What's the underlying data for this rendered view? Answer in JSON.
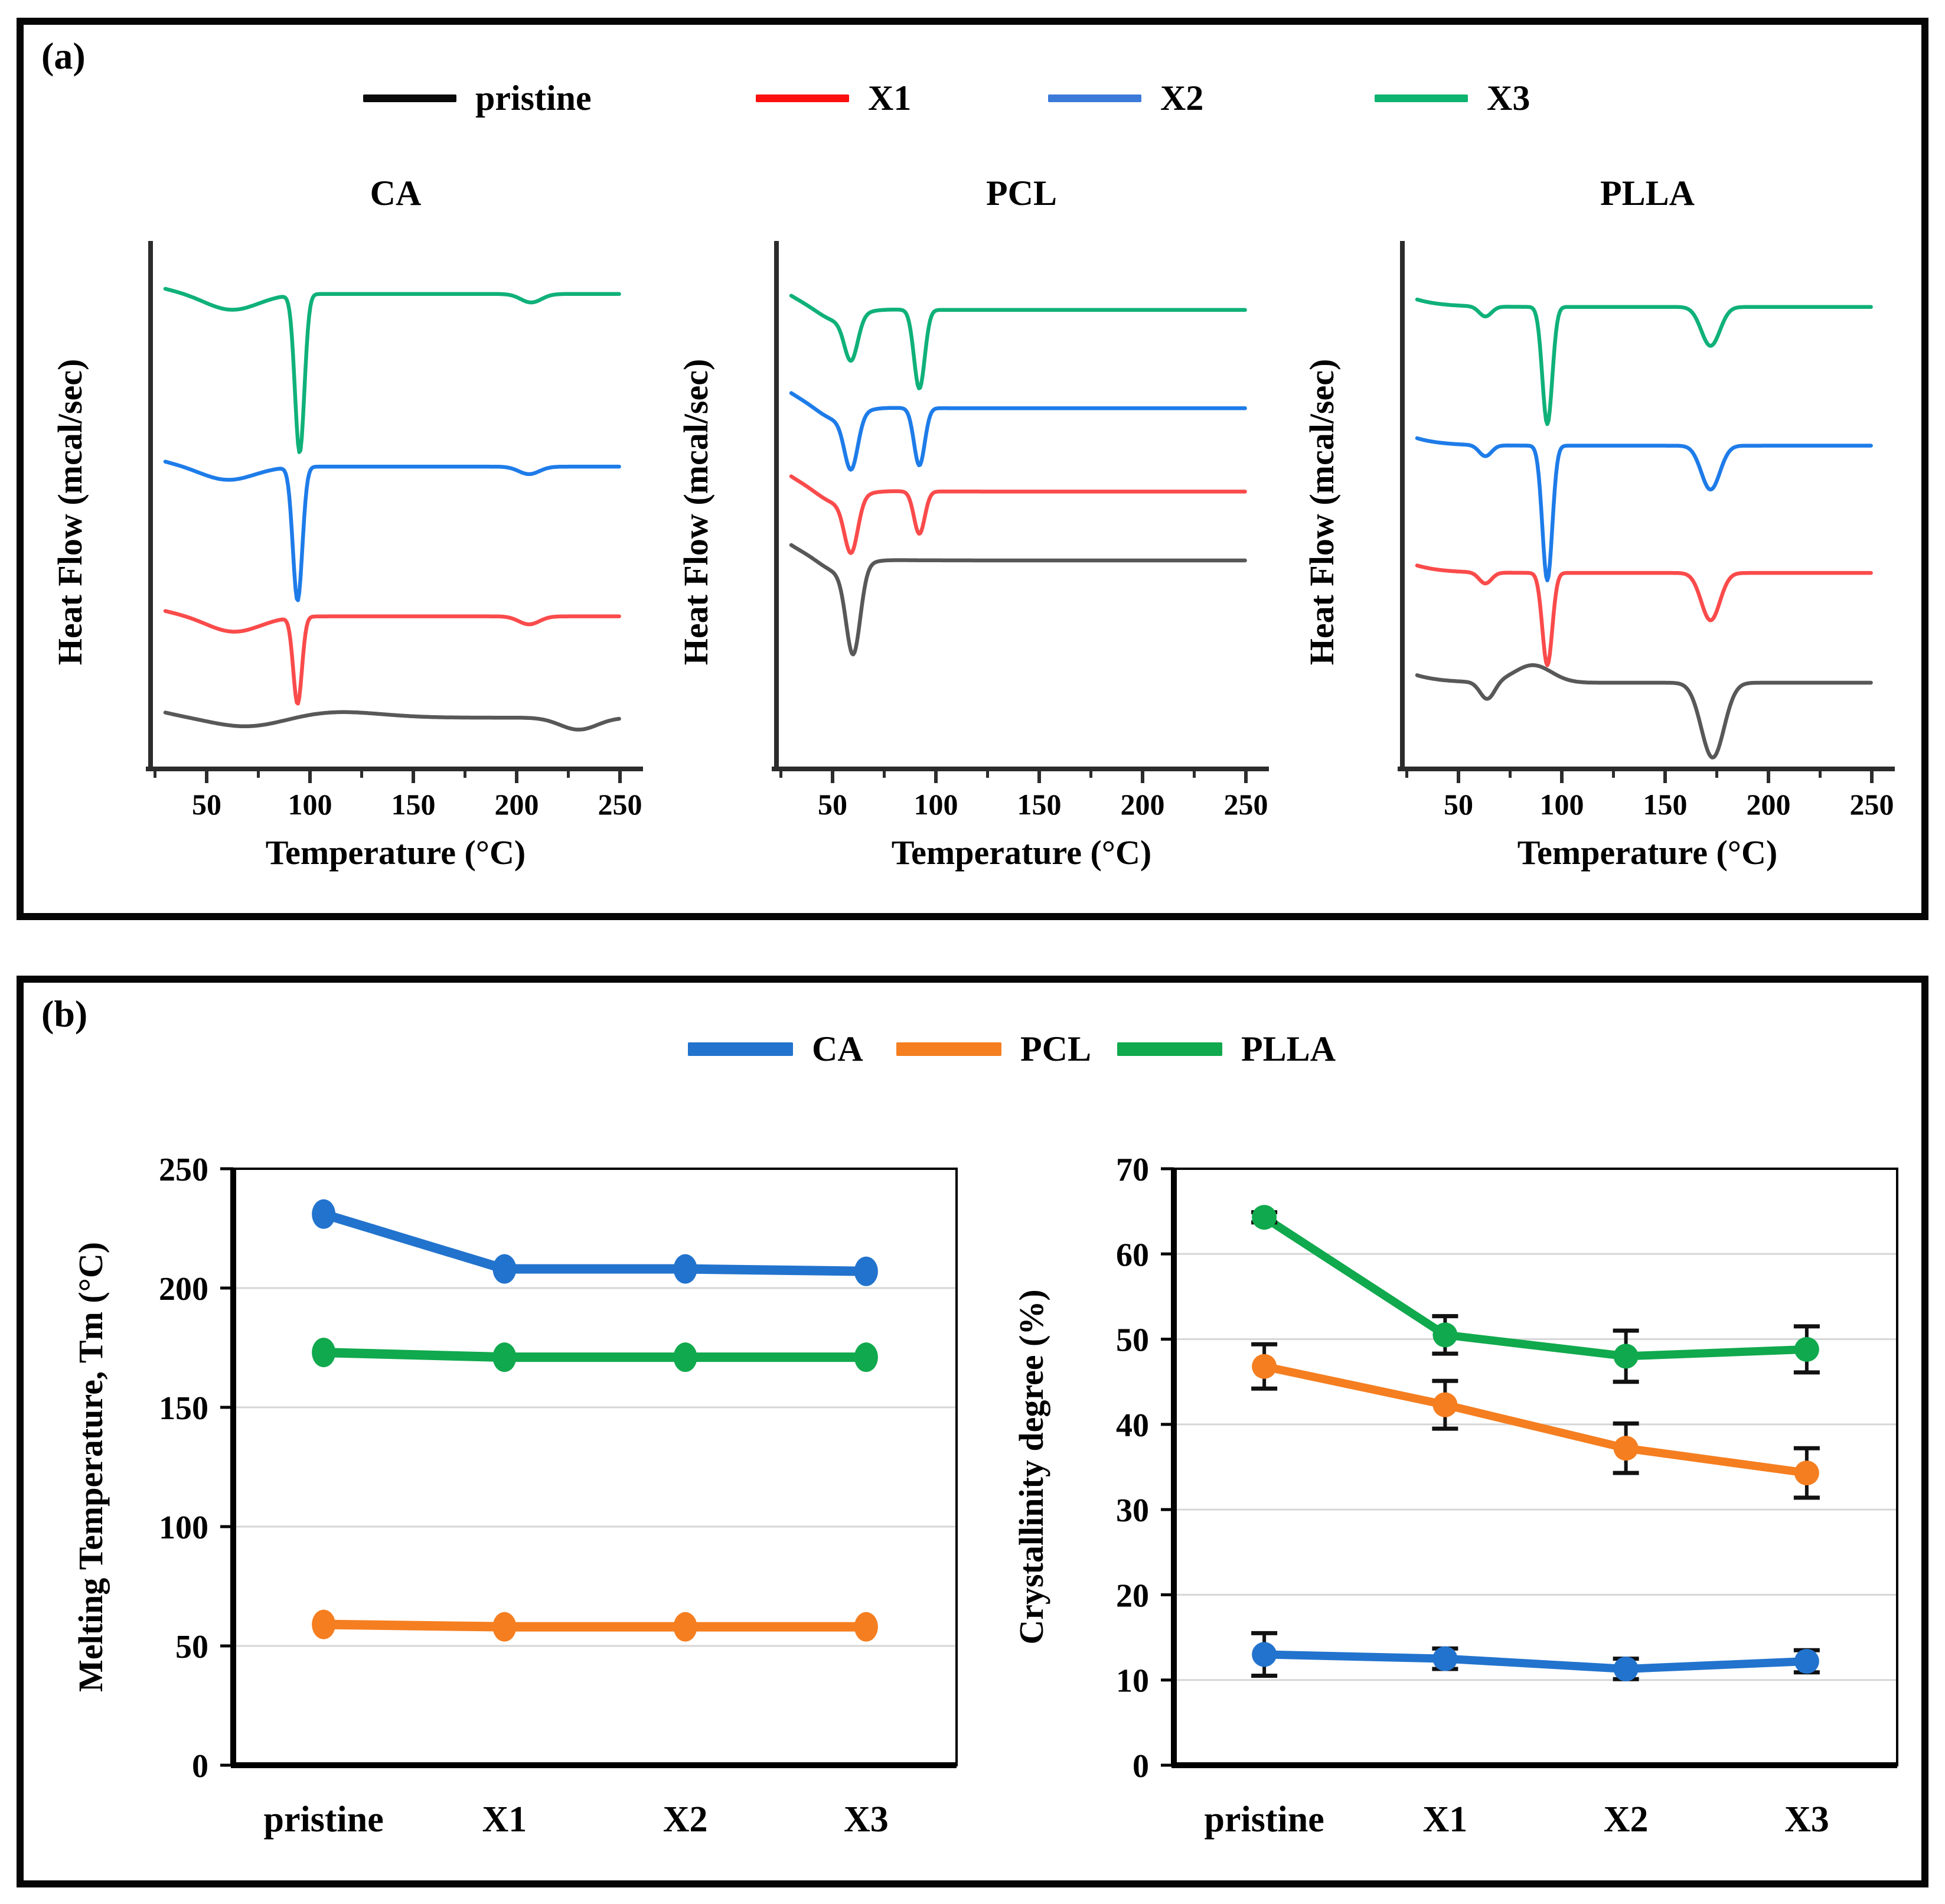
{
  "panel_a": {
    "label": "(a)",
    "legend": [
      {
        "label": "pristine",
        "color": "#0a0a0a"
      },
      {
        "label": "X1",
        "color": "#fb0f0f"
      },
      {
        "label": "X2",
        "color": "#3b7ad9"
      },
      {
        "label": "X3",
        "color": "#0db36f"
      }
    ]
  },
  "panel_b": {
    "label": "(b)",
    "legend": [
      {
        "label": "CA",
        "color": "#2273cd"
      },
      {
        "label": "PCL",
        "color": "#f57e20"
      },
      {
        "label": "PLLA",
        "color": "#10a94d"
      }
    ]
  },
  "chart_data": [
    {
      "id": "dsc_ca",
      "kind": "dsc",
      "type": "line",
      "title": "CA",
      "xlabel": "Temperature (°C)",
      "ylabel": "Heat Flow (mcal/sec)",
      "x_range": [
        30,
        250
      ],
      "x_ticks": [
        50,
        100,
        150,
        200,
        250
      ],
      "x_minor_ticks": [
        25,
        75,
        125,
        175,
        225
      ],
      "y_axis_note": "arbitrary units, curves vertically offset",
      "series": [
        {
          "name": "pristine",
          "color": "#585858",
          "baseline": 0.915,
          "edge": {
            "amp": 0.012,
            "decay": 15
          },
          "peaks": [
            {
              "center": 70,
              "sigma": 18,
              "depth": 0.02
            },
            {
              "center": 112,
              "sigma": 22,
              "depth": -0.012
            },
            {
              "center": 230,
              "sigma": 9,
              "depth": 0.024
            }
          ]
        },
        {
          "name": "X1",
          "color": "#fa4b4b",
          "baseline": 0.712,
          "edge": {
            "amp": 0.012,
            "decay": 15
          },
          "peaks": [
            {
              "center": 63,
              "sigma": 13,
              "depth": 0.032
            },
            {
              "center": 94,
              "sigma": 2.1,
              "depth": 0.174
            },
            {
              "center": 206,
              "sigma": 5,
              "depth": 0.016
            }
          ]
        },
        {
          "name": "X2",
          "color": "#1e7ce9",
          "baseline": 0.412,
          "edge": {
            "amp": 0.012,
            "decay": 15
          },
          "peaks": [
            {
              "center": 60,
              "sigma": 13,
              "depth": 0.028
            },
            {
              "center": 94,
              "sigma": 2.3,
              "depth": 0.268
            },
            {
              "center": 206,
              "sigma": 5,
              "depth": 0.015
            }
          ]
        },
        {
          "name": "X3",
          "color": "#0fb179",
          "baseline": 0.066,
          "edge": {
            "amp": 0.012,
            "decay": 15
          },
          "peaks": [
            {
              "center": 62,
              "sigma": 13,
              "depth": 0.033
            },
            {
              "center": 95,
              "sigma": 2.3,
              "depth": 0.317
            },
            {
              "center": 207,
              "sigma": 5,
              "depth": 0.017
            }
          ]
        }
      ]
    },
    {
      "id": "dsc_pcl",
      "kind": "dsc",
      "type": "line",
      "title": "PCL",
      "xlabel": "Temperature (°C)",
      "ylabel": "Heat Flow (mcal/sec)",
      "x_range": [
        30,
        250
      ],
      "x_ticks": [
        50,
        100,
        150,
        200,
        250
      ],
      "x_minor_ticks": [
        25,
        75,
        125,
        175,
        225
      ],
      "y_axis_note": "arbitrary units, curves vertically offset",
      "series": [
        {
          "name": "pristine",
          "color": "#585858",
          "baseline": 0.6,
          "edge": {
            "amp": 0.032,
            "decay": 14
          },
          "peaks": [
            {
              "center": 53,
              "sigma": 9,
              "depth": 0.03
            },
            {
              "center": 60,
              "sigma": 3.4,
              "depth": 0.17
            }
          ]
        },
        {
          "name": "X1",
          "color": "#fa4b4b",
          "baseline": 0.462,
          "edge": {
            "amp": 0.032,
            "decay": 14
          },
          "peaks": [
            {
              "center": 52,
              "sigma": 9,
              "depth": 0.03
            },
            {
              "center": 59,
              "sigma": 3.2,
              "depth": 0.105
            },
            {
              "center": 92,
              "sigma": 2.6,
              "depth": 0.085
            }
          ]
        },
        {
          "name": "X2",
          "color": "#1e7ce9",
          "baseline": 0.295,
          "edge": {
            "amp": 0.032,
            "decay": 14
          },
          "peaks": [
            {
              "center": 52,
              "sigma": 9,
              "depth": 0.03
            },
            {
              "center": 59,
              "sigma": 3.2,
              "depth": 0.105
            },
            {
              "center": 92,
              "sigma": 2.6,
              "depth": 0.115
            }
          ]
        },
        {
          "name": "X3",
          "color": "#0fb179",
          "baseline": 0.098,
          "edge": {
            "amp": 0.03,
            "decay": 14
          },
          "peaks": [
            {
              "center": 52,
              "sigma": 9,
              "depth": 0.028
            },
            {
              "center": 59,
              "sigma": 3.2,
              "depth": 0.085
            },
            {
              "center": 92,
              "sigma": 2.6,
              "depth": 0.158
            }
          ]
        }
      ]
    },
    {
      "id": "dsc_plla",
      "kind": "dsc",
      "type": "line",
      "title": "PLLA",
      "xlabel": "Temperature (°C)",
      "ylabel": "Heat Flow (mcal/sec)",
      "x_range": [
        30,
        250
      ],
      "x_ticks": [
        50,
        100,
        150,
        200,
        250
      ],
      "x_minor_ticks": [
        25,
        75,
        125,
        175,
        225
      ],
      "y_axis_note": "arbitrary units, curves vertically offset",
      "series": [
        {
          "name": "pristine",
          "color": "#585858",
          "baseline": 0.845,
          "edge": {
            "amp": 0.015,
            "decay": 12
          },
          "peaks": [
            {
              "center": 64,
              "sigma": 3.5,
              "depth": 0.035
            },
            {
              "center": 86,
              "sigma": 9,
              "depth": -0.035
            },
            {
              "center": 173,
              "sigma": 5.5,
              "depth": 0.15
            }
          ]
        },
        {
          "name": "X1",
          "color": "#fa4b4b",
          "baseline": 0.625,
          "edge": {
            "amp": 0.015,
            "decay": 12
          },
          "peaks": [
            {
              "center": 63,
              "sigma": 3,
              "depth": 0.022
            },
            {
              "center": 93,
              "sigma": 2.4,
              "depth": 0.185
            },
            {
              "center": 172,
              "sigma": 4.5,
              "depth": 0.095
            }
          ]
        },
        {
          "name": "X2",
          "color": "#1e7ce9",
          "baseline": 0.37,
          "edge": {
            "amp": 0.015,
            "decay": 12
          },
          "peaks": [
            {
              "center": 63,
              "sigma": 3,
              "depth": 0.022
            },
            {
              "center": 93,
              "sigma": 2.4,
              "depth": 0.27
            },
            {
              "center": 172,
              "sigma": 4.5,
              "depth": 0.088
            }
          ]
        },
        {
          "name": "X3",
          "color": "#0fb179",
          "baseline": 0.092,
          "edge": {
            "amp": 0.015,
            "decay": 12
          },
          "peaks": [
            {
              "center": 63,
              "sigma": 3,
              "depth": 0.02
            },
            {
              "center": 93,
              "sigma": 2.4,
              "depth": 0.235
            },
            {
              "center": 172,
              "sigma": 4.5,
              "depth": 0.078
            }
          ]
        }
      ]
    },
    {
      "id": "tm_chart",
      "kind": "category",
      "type": "line",
      "title": "",
      "ylabel": "Melting Temperature, Tm (°C)",
      "categories": [
        "pristine",
        "X1",
        "X2",
        "X3"
      ],
      "ylim": [
        0,
        250
      ],
      "y_ticks": [
        0,
        50,
        100,
        150,
        200,
        250
      ],
      "grid": true,
      "marker": "ellipse",
      "series": [
        {
          "name": "CA",
          "color": "#2273cd",
          "values": [
            231,
            208,
            208,
            207
          ]
        },
        {
          "name": "PCL",
          "color": "#f57e20",
          "values": [
            59,
            58,
            58,
            58
          ]
        },
        {
          "name": "PLLA",
          "color": "#10a94d",
          "values": [
            173,
            171,
            171,
            171
          ]
        }
      ]
    },
    {
      "id": "xc_chart",
      "kind": "category",
      "type": "line",
      "title": "",
      "ylabel": "Crystallinity  degree (%)",
      "categories": [
        "pristine",
        "X1",
        "X2",
        "X3"
      ],
      "ylim": [
        0,
        70
      ],
      "y_ticks": [
        0,
        10,
        20,
        30,
        40,
        50,
        60,
        70
      ],
      "grid": true,
      "marker": "circle",
      "series": [
        {
          "name": "CA",
          "color": "#2273cd",
          "values": [
            13,
            12.5,
            11.3,
            12.2
          ],
          "errors": [
            2.5,
            1.2,
            1.2,
            1.3
          ]
        },
        {
          "name": "PCL",
          "color": "#f57e20",
          "values": [
            46.8,
            42.3,
            37.2,
            34.3
          ],
          "errors": [
            2.6,
            2.8,
            2.9,
            2.9
          ]
        },
        {
          "name": "PLLA",
          "color": "#10a94d",
          "values": [
            64.3,
            50.5,
            48,
            48.8
          ],
          "errors": [
            0.6,
            2.2,
            3,
            2.7
          ]
        }
      ]
    }
  ]
}
